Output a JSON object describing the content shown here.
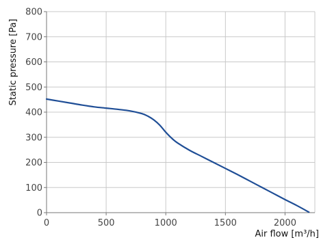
{
  "chart_data": {
    "type": "line",
    "title": "",
    "xlabel": "Air flow [m³/h]",
    "ylabel": "Static pressure [Pa]",
    "xlim": [
      0,
      2250
    ],
    "ylim": [
      0,
      800
    ],
    "xticks": [
      0,
      500,
      1000,
      1500,
      2000
    ],
    "yticks": [
      0,
      100,
      200,
      300,
      400,
      500,
      600,
      700,
      800
    ],
    "grid": true,
    "legend": "none",
    "series": [
      {
        "color": "#1f4e96",
        "x": [
          0,
          100,
          200,
          300,
          400,
          500,
          600,
          700,
          800,
          850,
          900,
          950,
          1000,
          1050,
          1100,
          1200,
          1300,
          1400,
          1500,
          1600,
          1700,
          1800,
          1900,
          2000,
          2100,
          2200
        ],
        "y": [
          452,
          444,
          436,
          428,
          421,
          416,
          411,
          405,
          394,
          384,
          369,
          348,
          320,
          296,
          277,
          248,
          224,
          200,
          176,
          152,
          127,
          102,
          77,
          52,
          28,
          2
        ]
      }
    ]
  }
}
